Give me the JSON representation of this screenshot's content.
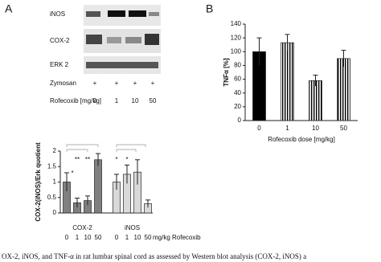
{
  "panel_labels": [
    "A",
    "B"
  ],
  "blot": {
    "rows": [
      "iNOS",
      "COX-2",
      "ERK 2"
    ],
    "treatments": [
      {
        "label": "Zymosan",
        "values": [
          "+",
          "+",
          "+",
          "+"
        ]
      },
      {
        "label": "Rofecoxib [mg/kg]",
        "values": [
          0,
          1,
          10,
          50
        ]
      }
    ]
  },
  "chart_data": [
    {
      "type": "bar",
      "ylabel": "TNFα [%]",
      "xlabel": "Rofecoxib dose [mg/kg]",
      "categories": [
        "0",
        "1",
        "10",
        "50"
      ],
      "values": [
        100,
        113,
        58,
        90
      ],
      "errors": [
        20,
        12,
        8,
        12
      ],
      "color": "#000000",
      "fills": [
        "solid",
        "vertical-stripes",
        "vertical-stripes",
        "vertical-stripes"
      ],
      "ylim": [
        0,
        140
      ],
      "yticks": [
        0,
        20,
        40,
        60,
        80,
        100,
        120,
        140
      ]
    },
    {
      "type": "grouped-bar",
      "ylabel": "COX-2(iNOS)/Erk quotient",
      "x_unit_label": "mg/kg Rofecoxib",
      "groups": [
        {
          "name": "COX-2",
          "color": "#808080",
          "categories": [
            "0",
            "1",
            "10",
            "50"
          ],
          "values": [
            1.0,
            0.33,
            0.4,
            1.72
          ],
          "errors": [
            0.3,
            0.15,
            0.15,
            0.2
          ]
        },
        {
          "name": "iNOS",
          "color": "#d9d9d9",
          "categories": [
            "0",
            "1",
            "10",
            "50"
          ],
          "values": [
            1.0,
            1.25,
            1.32,
            0.3
          ],
          "errors": [
            0.25,
            0.3,
            0.4,
            0.12
          ]
        }
      ],
      "annotations": [
        "*",
        "**",
        "**",
        "*",
        "*"
      ],
      "ylim": [
        0,
        2
      ],
      "yticks": [
        0,
        0.5,
        1,
        1.5,
        2
      ]
    }
  ],
  "caption": "OX-2, iNOS, and TNF-α in rat lumbar spinal cord as assessed by Western blot analysis (COX-2, iNOS) a"
}
